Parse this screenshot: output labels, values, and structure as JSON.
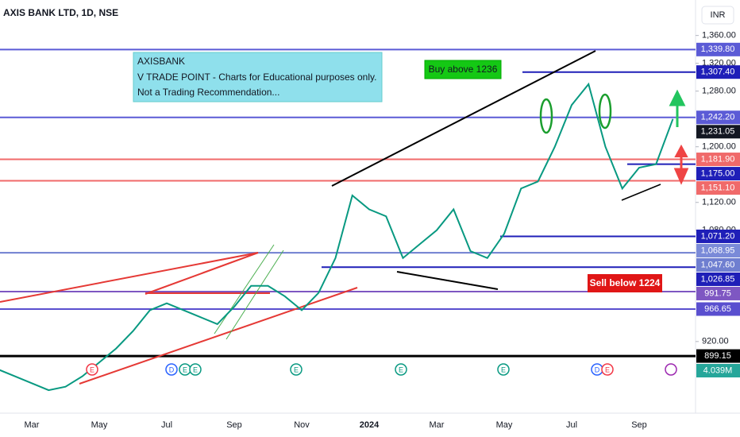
{
  "chart_data": {
    "type": "line",
    "title": "AXIS BANK LTD, 1D, NSE",
    "currency": "INR",
    "color": "#089981",
    "categories": [
      null,
      null,
      "Mar",
      null,
      null,
      null,
      "May",
      null,
      null,
      null,
      "Jul",
      null,
      null,
      null,
      "Sep",
      null,
      null,
      null,
      "Nov",
      null,
      null,
      null,
      "2024",
      null,
      null,
      null,
      "Mar",
      null,
      null,
      null,
      "May",
      null,
      null,
      null,
      "Jul",
      null,
      null,
      null,
      "Sep",
      null,
      null
    ],
    "values": [
      880,
      870,
      860,
      850,
      855,
      870,
      890,
      910,
      935,
      965,
      975,
      965,
      955,
      945,
      970,
      1000,
      1000,
      985,
      965,
      990,
      1040,
      1130,
      1110,
      1100,
      1040,
      1060,
      1080,
      1110,
      1050,
      1040,
      1075,
      1140,
      1150,
      1200,
      1260,
      1290,
      1200,
      1140,
      1170,
      1175,
      1240
    ],
    "ylim": [
      817,
      1411
    ],
    "yticks": [
      {
        "value": 1360,
        "label": "1,360.00"
      },
      {
        "value": 1320,
        "label": "1,320.00"
      },
      {
        "value": 1280,
        "label": "1,280.00"
      },
      {
        "value": 1200,
        "label": "1,200.00"
      },
      {
        "value": 1120,
        "label": "1,120.00"
      },
      {
        "value": 1080,
        "label": "1,080.00"
      },
      {
        "value": 920,
        "label": "920.00"
      }
    ],
    "price_tags": [
      {
        "value": 1339.8,
        "label": "1,339.80",
        "color": "#5b5bd6",
        "line": "full"
      },
      {
        "value": 1307.4,
        "label": "1,307.40",
        "color": "#1f1fb8",
        "line": "partial"
      },
      {
        "value": 1242.2,
        "label": "1,242.20",
        "color": "#5b5bd6",
        "line": "full"
      },
      {
        "value": 1231.05,
        "label": "1,231.05",
        "color": "#131722",
        "line": "none"
      },
      {
        "value": 1181.9,
        "label": "1,181.90",
        "color": "#f06a6a",
        "line": "full"
      },
      {
        "value": 1175,
        "label": "1,175.00",
        "color": "#1f1fb8",
        "line": "partial"
      },
      {
        "value": 1151.1,
        "label": "1,151.10",
        "color": "#f06a6a",
        "line": "full"
      },
      {
        "value": 1071.2,
        "label": "1,071.20",
        "color": "#1f1fb8",
        "line": "partial"
      },
      {
        "value": 1068.95,
        "label": "1,068.95",
        "color": "#7a8ad8",
        "line": "none"
      },
      {
        "value": 1047.6,
        "label": "1,047.60",
        "color": "#6f7fd0",
        "line": "full"
      },
      {
        "value": 1026.85,
        "label": "1,026.85",
        "color": "#1f1fb8",
        "line": "partial"
      },
      {
        "value": 991.75,
        "label": "991.75",
        "color": "#7e57c2",
        "line": "full"
      },
      {
        "value": 966.65,
        "label": "966.65",
        "color": "#5a4fcf",
        "line": "full"
      },
      {
        "value": 899.15,
        "label": "899.15",
        "color": "#000000",
        "line": "full"
      }
    ],
    "volume_label": "4.039M",
    "events": [
      "E",
      "D",
      "E",
      "E",
      "E",
      "E",
      "E",
      "D",
      "E"
    ],
    "annotations": {
      "note": [
        "AXISBANK",
        "V TRADE POINT - Charts for Educational purposes only.",
        "Not a Trading Recommendation..."
      ],
      "buy": "Buy above 1236",
      "sell": "Sell below 1224"
    }
  }
}
